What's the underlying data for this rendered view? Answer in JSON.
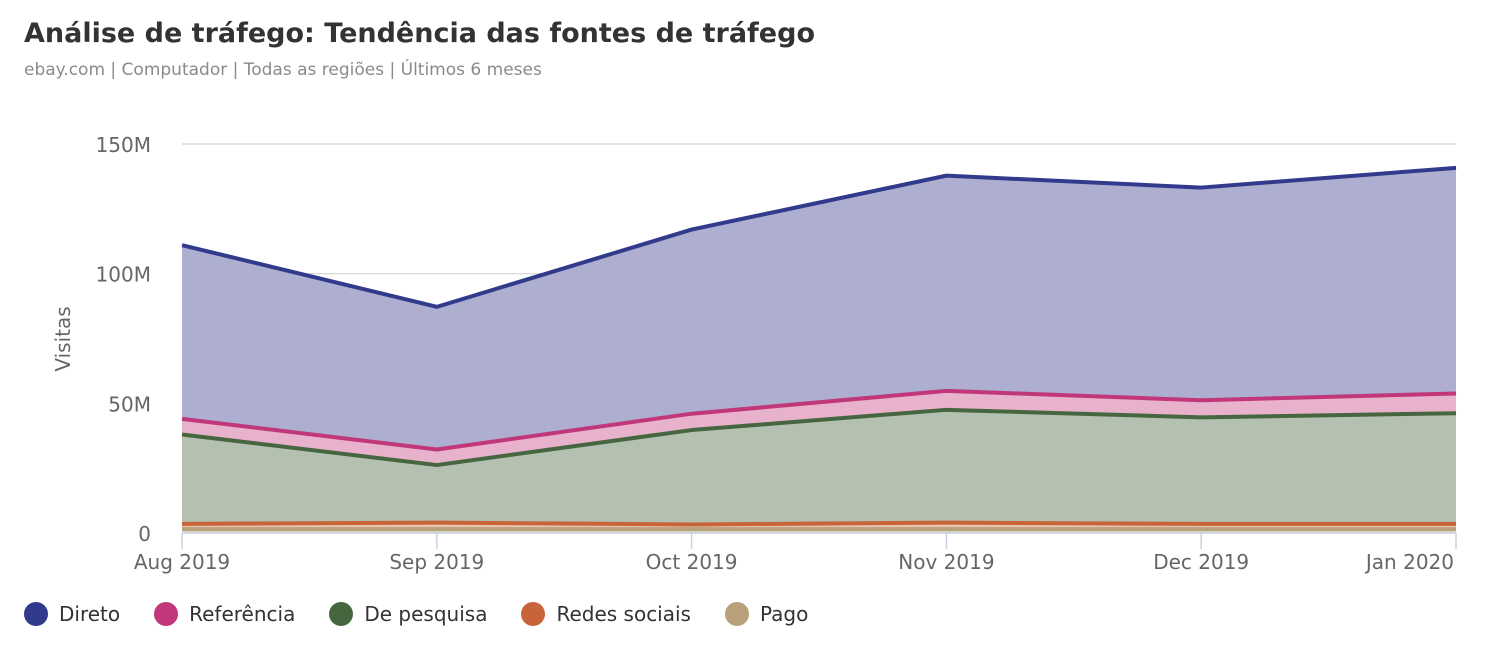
{
  "header": {
    "title": "Análise de tráfego: Tendência das fontes de tráfego",
    "subtitle": "ebay.com | Computador | Todas as regiões | Últimos 6 meses"
  },
  "chart_data": {
    "type": "area",
    "stacked": true,
    "title": "Análise de tráfego: Tendência das fontes de tráfego",
    "subtitle": "ebay.com | Computador | Todas as regiões | Últimos 6 meses",
    "xlabel": "",
    "ylabel": "Visitas",
    "ylim": [
      0,
      150000000
    ],
    "yticks": [
      0,
      50000000,
      100000000,
      150000000
    ],
    "ytick_labels": [
      "0",
      "50M",
      "100M",
      "150M"
    ],
    "grid": true,
    "legend_position": "bottom-left",
    "categories": [
      "Aug 2019",
      "Sep 2019",
      "Oct 2019",
      "Nov 2019",
      "Dec 2019",
      "Jan 2020"
    ],
    "series": [
      {
        "name": "Pago",
        "color": "#b8a07a",
        "fill": "#e3dccf",
        "values": [
          1500000,
          1500000,
          1500000,
          1500000,
          1500000,
          1500000
        ]
      },
      {
        "name": "Redes sociais",
        "color": "#c8643a",
        "fill": "#eac3ae",
        "values": [
          2000000,
          2500000,
          1800000,
          2500000,
          2000000,
          2000000
        ]
      },
      {
        "name": "De pesquisa",
        "color": "#466640",
        "fill": "#b4c0b0",
        "values": [
          34500000,
          22200000,
          36400000,
          43500000,
          41100000,
          42700000
        ]
      },
      {
        "name": "Referência",
        "color": "#c0377a",
        "fill": "#e8b1cc",
        "values": [
          6000000,
          6000000,
          6300000,
          7300000,
          6600000,
          7600000
        ]
      },
      {
        "name": "Direto",
        "color": "#323a8c",
        "fill": "#adaed0",
        "values": [
          67000000,
          55000000,
          71000000,
          83000000,
          82000000,
          87000000
        ]
      }
    ]
  },
  "legend": {
    "items": [
      {
        "label": "Direto",
        "color": "#323a8c"
      },
      {
        "label": "Referência",
        "color": "#c0377a"
      },
      {
        "label": "De pesquisa",
        "color": "#466640"
      },
      {
        "label": "Redes sociais",
        "color": "#c8643a"
      },
      {
        "label": "Pago",
        "color": "#b8a07a"
      }
    ]
  }
}
